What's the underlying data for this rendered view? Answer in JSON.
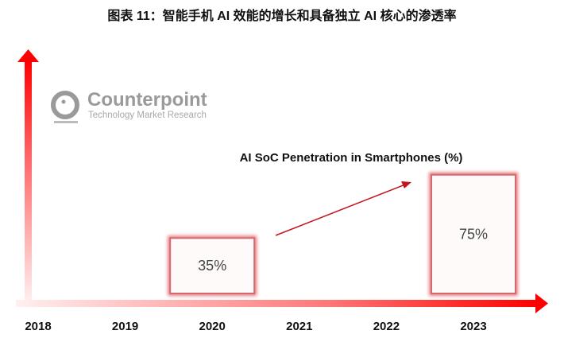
{
  "figure_title": "图表 11：智能手机 AI 效能的增长和具备独立 AI 核心的渗透率",
  "logo": {
    "name": "Counterpoint",
    "tagline": "Technology Market Research"
  },
  "chart_data": {
    "type": "bar",
    "title": "AI SoC Penetration in Smartphones (%)",
    "categories": [
      "2018",
      "2019",
      "2020",
      "2021",
      "2022",
      "2023"
    ],
    "values": [
      null,
      null,
      35,
      null,
      null,
      75
    ],
    "data_labels": [
      "",
      "",
      "35%",
      "",
      "",
      "75%"
    ],
    "xlabel": "",
    "ylabel": "",
    "ylim": [
      0,
      100
    ],
    "grid": false,
    "annotations": [
      "trend arrow from 2020 to 2023"
    ]
  },
  "colors": {
    "accent": "#e8141b",
    "bar_border": "#d46a70",
    "trend_arrow": "#c0161c"
  }
}
